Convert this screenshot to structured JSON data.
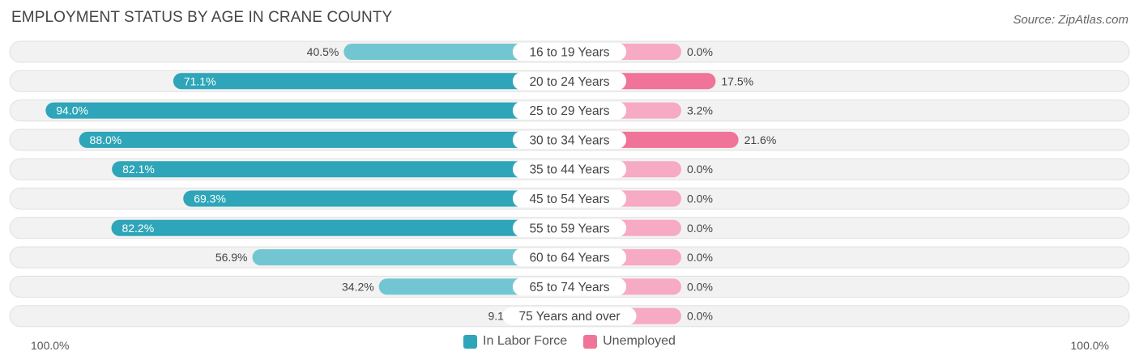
{
  "header": {
    "title": "EMPLOYMENT STATUS BY AGE IN CRANE COUNTY",
    "source": "Source: ZipAtlas.com"
  },
  "axis": {
    "left_label": "100.0%",
    "right_label": "100.0%"
  },
  "colors": {
    "labor_strong": "#2ea5b8",
    "labor_light": "#72c6d1",
    "unemp_strong": "#f07399",
    "unemp_light": "#f6aac3",
    "row_bg": "#f2f2f2",
    "row_border": "#e0e0e0"
  },
  "chart_data": {
    "type": "bar",
    "title": "EMPLOYMENT STATUS BY AGE IN CRANE COUNTY",
    "orientation": "horizontal-diverging",
    "xlim": [
      -100,
      100
    ],
    "categories": [
      "16 to 19 Years",
      "20 to 24 Years",
      "25 to 29 Years",
      "30 to 34 Years",
      "35 to 44 Years",
      "45 to 54 Years",
      "55 to 59 Years",
      "60 to 64 Years",
      "65 to 74 Years",
      "75 Years and over"
    ],
    "series": [
      {
        "name": "In Labor Force",
        "values": [
          40.5,
          71.1,
          94.0,
          88.0,
          82.1,
          69.3,
          82.2,
          56.9,
          34.2,
          9.1
        ],
        "labels": [
          "40.5%",
          "71.1%",
          "94.0%",
          "88.0%",
          "82.1%",
          "69.3%",
          "82.2%",
          "56.9%",
          "34.2%",
          "9.1%"
        ]
      },
      {
        "name": "Unemployed",
        "values": [
          0.0,
          17.5,
          3.2,
          21.6,
          0.0,
          0.0,
          0.0,
          0.0,
          0.0,
          0.0
        ],
        "labels": [
          "0.0%",
          "17.5%",
          "3.2%",
          "21.6%",
          "0.0%",
          "0.0%",
          "0.0%",
          "0.0%",
          "0.0%",
          "0.0%"
        ]
      }
    ],
    "legend": "bottom-center"
  }
}
